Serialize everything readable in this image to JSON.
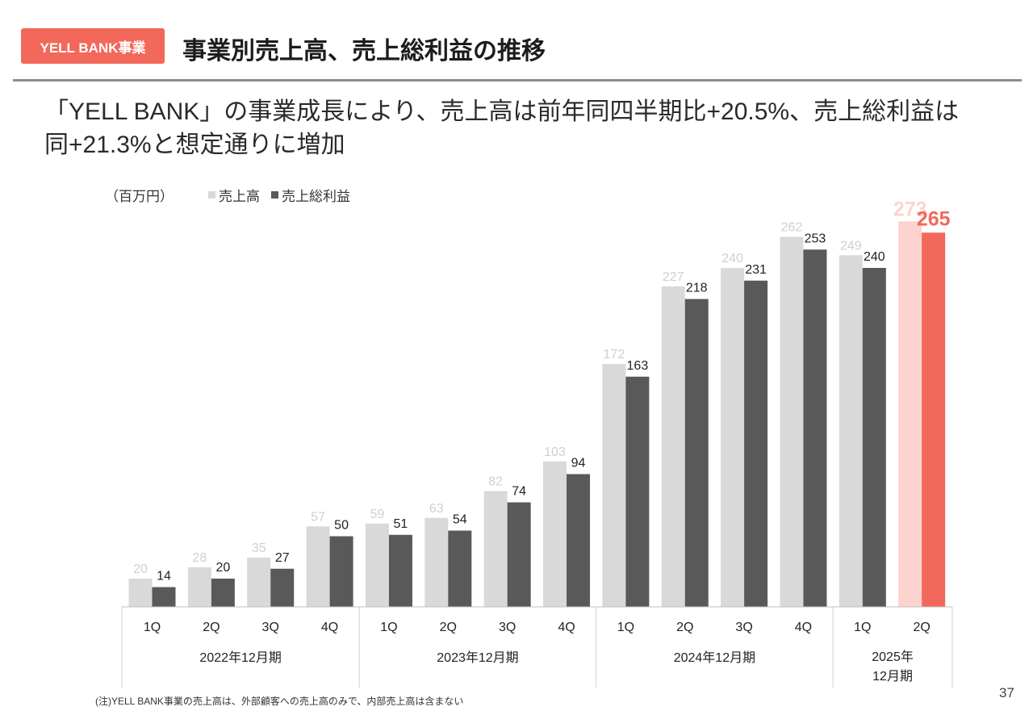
{
  "header": {
    "badge": "YELL BANK事業",
    "title": "事業別売上高、売上総利益の推移"
  },
  "headline": {
    "line1": "「YELL BANK」の事業成長により、売上高は前年同四半期比+20.5%、売上総利益は",
    "line2": "同+21.3%と想定通りに増加"
  },
  "colors": {
    "accent": "#f2685a",
    "sales": "#d9d9d9",
    "gross_profit": "#595959",
    "sales_highlight": "#fdd3cf",
    "gross_profit_highlight": "#f2685a"
  },
  "chart_data": {
    "type": "bar",
    "unit_label": "（百万円）",
    "categories": [
      "1Q",
      "2Q",
      "3Q",
      "4Q",
      "1Q",
      "2Q",
      "3Q",
      "4Q",
      "1Q",
      "2Q",
      "3Q",
      "4Q",
      "1Q",
      "2Q"
    ],
    "groups": [
      {
        "label": "2022年12月期",
        "count": 4
      },
      {
        "label": "2023年12月期",
        "count": 4
      },
      {
        "label": "2024年12月期",
        "count": 4
      },
      {
        "label": "2025年\n12月期",
        "count": 2
      }
    ],
    "series": [
      {
        "name": "売上高",
        "values": [
          20,
          28,
          35,
          57,
          59,
          63,
          82,
          103,
          172,
          227,
          240,
          262,
          249,
          273
        ]
      },
      {
        "name": "売上総利益",
        "values": [
          14,
          20,
          27,
          50,
          51,
          54,
          74,
          94,
          163,
          218,
          231,
          253,
          240,
          265
        ]
      }
    ],
    "highlight_index": 13,
    "ylim": [
      0,
      280
    ],
    "grid": false,
    "legend_position": "top-left"
  },
  "footnote": "(注)YELL BANK事業の売上高は、外部顧客への売上高のみで、内部売上高は含まない",
  "page_number": "37"
}
